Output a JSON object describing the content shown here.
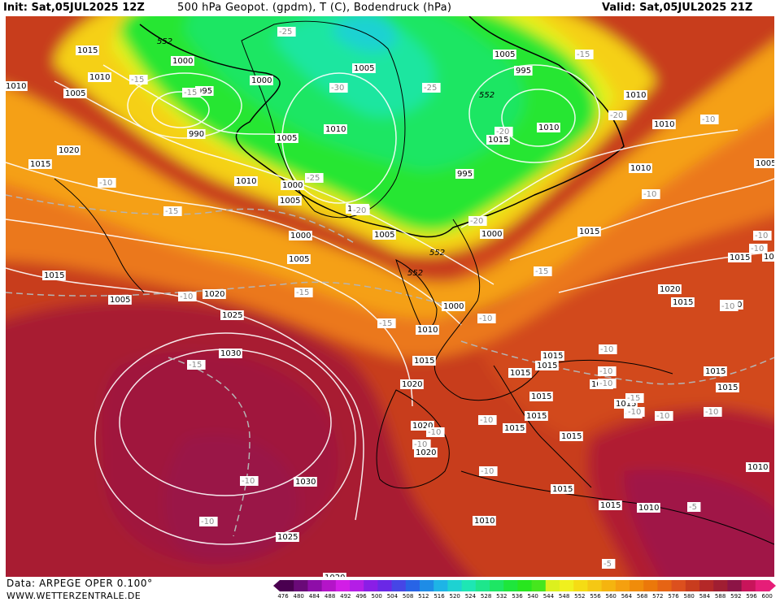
{
  "header": {
    "init": "Init: Sat,05JUL2025 12Z",
    "title": "500 hPa Geopot. (gpdm), T (C), Bodendruck (hPa)",
    "valid": "Valid: Sat,05JUL2025 21Z"
  },
  "footer": {
    "source": "Data: ARPEGE OPER 0.100°",
    "website": "WWW.WETTERZENTRALE.DE"
  },
  "colorbar": {
    "labels": [
      "476",
      "480",
      "484",
      "488",
      "492",
      "496",
      "500",
      "504",
      "508",
      "512",
      "516",
      "520",
      "524",
      "528",
      "532",
      "536",
      "540",
      "544",
      "548",
      "552",
      "556",
      "560",
      "564",
      "568",
      "572",
      "576",
      "580",
      "584",
      "588",
      "592",
      "596",
      "600"
    ],
    "colors": [
      "#4a0050",
      "#6a0a78",
      "#8e0ea8",
      "#b414c8",
      "#d21ee6",
      "#b41ee6",
      "#8a1ee6",
      "#6a28e6",
      "#4646e6",
      "#2864e6",
      "#1e8ce6",
      "#1eb4e6",
      "#1ed2d2",
      "#1ee6b4",
      "#1ee68c",
      "#1ee664",
      "#1ee63c",
      "#28e61e",
      "#46e61e",
      "#dcf01e",
      "#f0f01e",
      "#f5dc14",
      "#f5c814",
      "#f5b40f",
      "#f5a00f",
      "#f08c0a",
      "#eb780a",
      "#e66414",
      "#dc501e",
      "#c83c1e",
      "#b42828",
      "#a01e32",
      "#8c1446",
      "#c8145a",
      "#e61e78"
    ]
  },
  "pressure_labels": [
    {
      "text": "1015"
    },
    {
      "text": "1010"
    },
    {
      "text": "1005"
    },
    {
      "text": "1000"
    },
    {
      "text": "995"
    },
    {
      "text": "990"
    },
    {
      "text": "1000"
    },
    {
      "text": "1005"
    },
    {
      "text": "1010"
    },
    {
      "text": "1005"
    },
    {
      "text": "1000"
    },
    {
      "text": "1005"
    },
    {
      "text": "1010"
    },
    {
      "text": "1005"
    },
    {
      "text": "1000"
    },
    {
      "text": "995"
    },
    {
      "text": "1000"
    },
    {
      "text": "1005"
    },
    {
      "text": "995"
    },
    {
      "text": "1010"
    },
    {
      "text": "1010"
    },
    {
      "text": "1015"
    },
    {
      "text": "1010"
    },
    {
      "text": "1010"
    },
    {
      "text": "1005"
    },
    {
      "text": "1000"
    },
    {
      "text": "1005"
    },
    {
      "text": "1000"
    },
    {
      "text": "1010"
    },
    {
      "text": "1015"
    },
    {
      "text": "1015"
    },
    {
      "text": "1020"
    },
    {
      "text": "1015"
    },
    {
      "text": "1020"
    },
    {
      "text": "1025"
    },
    {
      "text": "1030"
    },
    {
      "text": "1030"
    },
    {
      "text": "1025"
    },
    {
      "text": "1020"
    },
    {
      "text": "1005"
    },
    {
      "text": "1010"
    },
    {
      "text": "1015"
    },
    {
      "text": "1020"
    },
    {
      "text": "1020"
    },
    {
      "text": "1015"
    },
    {
      "text": "1015"
    },
    {
      "text": "1015"
    },
    {
      "text": "1015"
    },
    {
      "text": "1020"
    },
    {
      "text": "1015"
    },
    {
      "text": "1015"
    },
    {
      "text": "1015"
    },
    {
      "text": "1015"
    },
    {
      "text": "1015"
    },
    {
      "text": "1015"
    },
    {
      "text": "1015"
    },
    {
      "text": "1020"
    },
    {
      "text": "1015"
    },
    {
      "text": "1010"
    },
    {
      "text": "1015"
    },
    {
      "text": "1015"
    },
    {
      "text": "1010"
    },
    {
      "text": "1010"
    },
    {
      "text": "1015"
    },
    {
      "text": "1020"
    },
    {
      "text": "1010"
    }
  ],
  "temperature_labels": [
    {
      "text": "-25"
    },
    {
      "text": "-15"
    },
    {
      "text": "-15"
    },
    {
      "text": "-30"
    },
    {
      "text": "-25"
    },
    {
      "text": "-15"
    },
    {
      "text": "-20"
    },
    {
      "text": "-20"
    },
    {
      "text": "-10"
    },
    {
      "text": "-15"
    },
    {
      "text": "-25"
    },
    {
      "text": "-20"
    },
    {
      "text": "-20"
    },
    {
      "text": "-15"
    },
    {
      "text": "-10"
    },
    {
      "text": "-10"
    },
    {
      "text": "-10"
    },
    {
      "text": "-15"
    },
    {
      "text": "-15"
    },
    {
      "text": "-15"
    },
    {
      "text": "-10"
    },
    {
      "text": "-10"
    },
    {
      "text": "-10"
    },
    {
      "text": "-10"
    },
    {
      "text": "-10"
    },
    {
      "text": "-10"
    },
    {
      "text": "-10"
    },
    {
      "text": "-15"
    },
    {
      "text": "-10"
    },
    {
      "text": "-10"
    },
    {
      "text": "-10"
    },
    {
      "text": "-10"
    },
    {
      "text": "-10"
    },
    {
      "text": "-10"
    },
    {
      "text": "-10"
    },
    {
      "text": "-10"
    },
    {
      "text": "-10"
    },
    {
      "text": "-10"
    },
    {
      "text": "-5"
    },
    {
      "text": "-5"
    }
  ],
  "geopot_labels": [
    {
      "text": "552"
    },
    {
      "text": "552"
    },
    {
      "text": "552"
    },
    {
      "text": "552"
    }
  ]
}
